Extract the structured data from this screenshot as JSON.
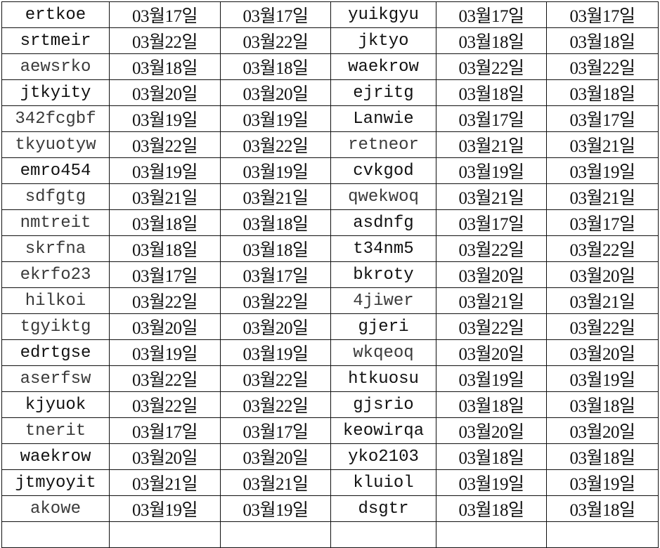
{
  "rows": [
    [
      "ertkoe",
      "03월17일",
      "03월17일",
      "yuikgyu",
      "03월17일",
      "03월17일"
    ],
    [
      "srtmeir",
      "03월22일",
      "03월22일",
      "jktyo",
      "03월18일",
      "03월18일"
    ],
    [
      "aewsrko",
      "03월18일",
      "03월18일",
      "waekrow",
      "03월22일",
      "03월22일"
    ],
    [
      "jtkyity",
      "03월20일",
      "03월20일",
      "ejritg",
      "03월18일",
      "03월18일"
    ],
    [
      "342fcgbf",
      "03월19일",
      "03월19일",
      "Lanwie",
      "03월17일",
      "03월17일"
    ],
    [
      "tkyuotyw",
      "03월22일",
      "03월22일",
      "retneor",
      "03월21일",
      "03월21일"
    ],
    [
      "emro454",
      "03월19일",
      "03월19일",
      "cvkgod",
      "03월19일",
      "03월19일"
    ],
    [
      "sdfgtg",
      "03월21일",
      "03월21일",
      "qwekwoq",
      "03월21일",
      "03월21일"
    ],
    [
      "nmtreit",
      "03월18일",
      "03월18일",
      "asdnfg",
      "03월17일",
      "03월17일"
    ],
    [
      "skrfna",
      "03월18일",
      "03월18일",
      "t34nm5",
      "03월22일",
      "03월22일"
    ],
    [
      "ekrfo23",
      "03월17일",
      "03월17일",
      "bkroty",
      "03월20일",
      "03월20일"
    ],
    [
      "hilkoi",
      "03월22일",
      "03월22일",
      "4jiwer",
      "03월21일",
      "03월21일"
    ],
    [
      "tgyiktg",
      "03월20일",
      "03월20일",
      "gjeri",
      "03월22일",
      "03월22일"
    ],
    [
      "edrtgse",
      "03월19일",
      "03월19일",
      "wkqeoq",
      "03월20일",
      "03월20일"
    ],
    [
      "aserfsw",
      "03월22일",
      "03월22일",
      "htkuosu",
      "03월19일",
      "03월19일"
    ],
    [
      "kjyuok",
      "03월22일",
      "03월22일",
      "gjsrio",
      "03월18일",
      "03월18일"
    ],
    [
      "tnerit",
      "03월17일",
      "03월17일",
      "keowirqa",
      "03월20일",
      "03월20일"
    ],
    [
      "waekrow",
      "03월20일",
      "03월20일",
      "yko2103",
      "03월18일",
      "03월18일"
    ],
    [
      "jtmyoyit",
      "03월21일",
      "03월21일",
      "kluiol",
      "03월19일",
      "03월19일"
    ],
    [
      "akowe",
      "03월19일",
      "03월19일",
      "dsgtr",
      "03월18일",
      "03월18일"
    ]
  ],
  "light_names": [
    "aewsrko",
    "342fcgbf",
    "tkyuotyw",
    "sdfgtg",
    "nmtreit",
    "skrfna",
    "ekrfo23",
    "hilkoi",
    "tgyiktg",
    "aserfsw",
    "tnerit",
    "akowe",
    "retneor",
    "wkqeoq",
    "qwekwoq",
    "4jiwer"
  ],
  "colors": {
    "text": "#111111",
    "grid": "#111111",
    "background": "#ffffff"
  }
}
